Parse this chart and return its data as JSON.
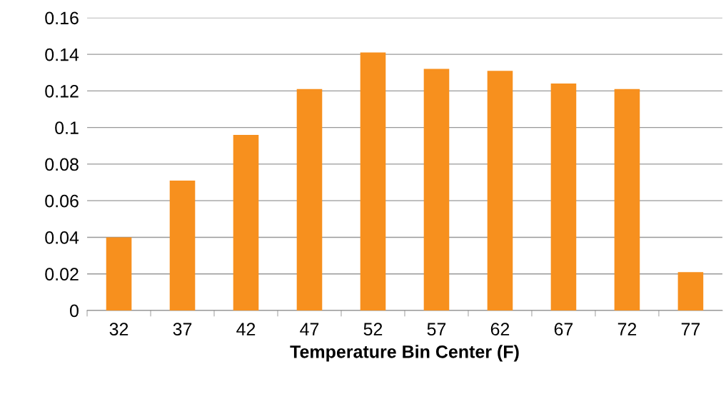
{
  "chart_data": {
    "type": "bar",
    "xlabel": "Temperature Bin Center (F)",
    "categories": [
      "32",
      "37",
      "42",
      "47",
      "52",
      "57",
      "62",
      "67",
      "72",
      "77"
    ],
    "values": [
      0.04,
      0.071,
      0.096,
      0.121,
      0.141,
      0.132,
      0.131,
      0.124,
      0.121,
      0.021
    ],
    "color": "#f7901e",
    "ylim": [
      0,
      0.16
    ],
    "yticks": [
      {
        "value": 0,
        "label": "0"
      },
      0.02,
      0.04,
      0.06,
      0.08,
      {
        "value": 0.1,
        "label": "0.1"
      },
      0.12,
      0.14,
      0.16
    ],
    "grid": "y",
    "legend": false
  }
}
